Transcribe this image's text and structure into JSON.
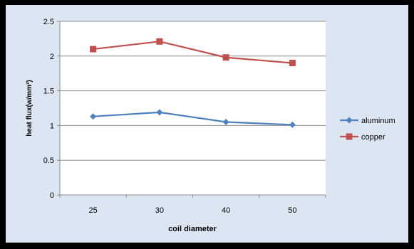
{
  "chart_data": {
    "type": "line",
    "categories": [
      "25",
      "30",
      "40",
      "50"
    ],
    "series": [
      {
        "name": "aluminum",
        "values": [
          1.13,
          1.19,
          1.05,
          1.01
        ],
        "color": "#4F81BD",
        "marker": "diamond"
      },
      {
        "name": "copper",
        "values": [
          2.1,
          2.21,
          1.98,
          1.9
        ],
        "color": "#C0504D",
        "marker": "square"
      }
    ],
    "xlabel": "coil diameter",
    "ylabel": "heat flux(w/mm²)",
    "ylim": [
      0,
      2.5
    ],
    "yticks": [
      "0",
      "0.5",
      "1",
      "1.5",
      "2",
      "2.5"
    ],
    "grid": true,
    "legend": "right",
    "colors": {
      "background": "#DCE6F2",
      "plot_area": "#FFFFFF",
      "border": "#000000",
      "gridline": "#8C8C8C"
    }
  }
}
